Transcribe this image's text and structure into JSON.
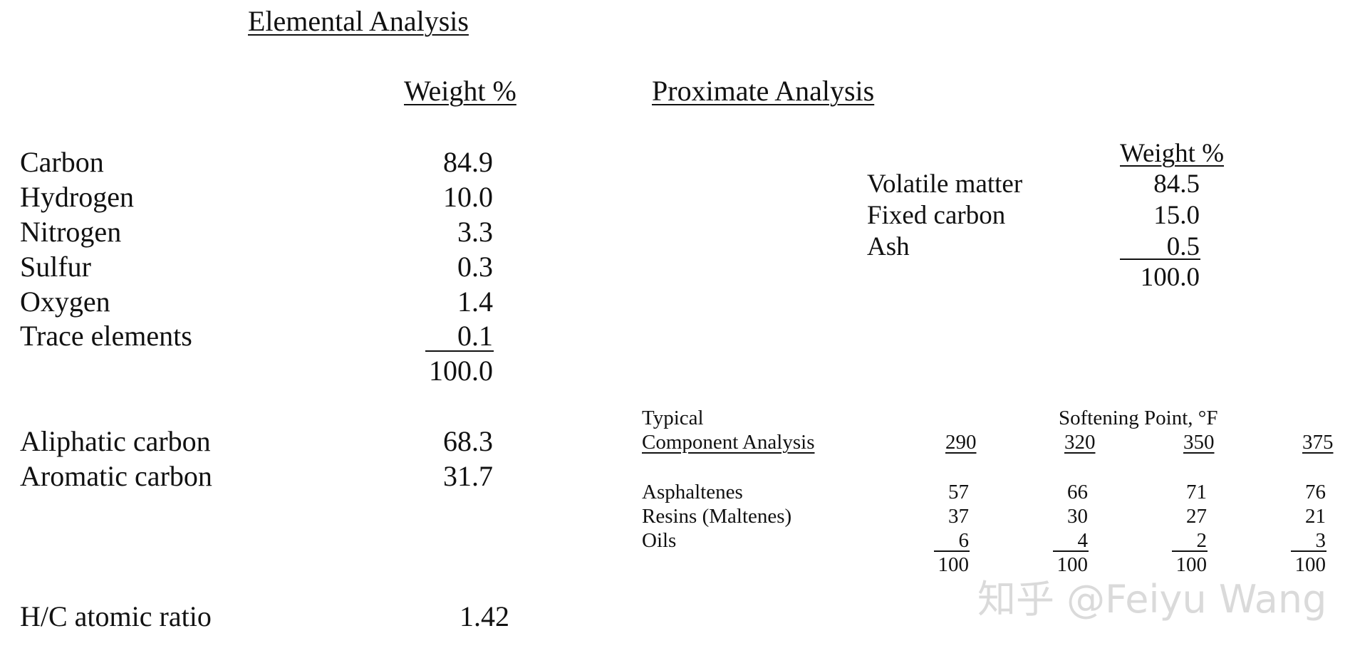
{
  "elemental": {
    "title": "Elemental Analysis",
    "weight_header": "Weight %",
    "rows": [
      {
        "label": "Carbon",
        "value": "84.9"
      },
      {
        "label": "Hydrogen",
        "value": "10.0"
      },
      {
        "label": "Nitrogen",
        "value": "3.3"
      },
      {
        "label": "Sulfur",
        "value": "0.3"
      },
      {
        "label": "Oxygen",
        "value": "1.4"
      },
      {
        "label": "Trace elements",
        "value": "0.1"
      }
    ],
    "total": "100.0",
    "carbon_types": [
      {
        "label": "Aliphatic carbon",
        "value": "68.3"
      },
      {
        "label": "Aromatic carbon",
        "value": "31.7"
      }
    ],
    "hc_ratio": {
      "label": "H/C atomic ratio",
      "value": "1.42"
    }
  },
  "proximate": {
    "title": "Proximate Analysis",
    "weight_header": "Weight %",
    "rows": [
      {
        "label": "Volatile matter",
        "value": "84.5"
      },
      {
        "label": "Fixed carbon",
        "value": "15.0"
      },
      {
        "label": "Ash",
        "value": "0.5"
      }
    ],
    "total": "100.0"
  },
  "component": {
    "title_line1": "Typical",
    "title_line2": "Component Analysis",
    "softening_header": "Softening Point, °F",
    "columns": [
      "290",
      "320",
      "350",
      "375"
    ],
    "rows": [
      {
        "label": "Asphaltenes",
        "values": [
          "57",
          "66",
          "71",
          "76"
        ]
      },
      {
        "label": "Resins (Maltenes)",
        "values": [
          "37",
          "30",
          "27",
          "21"
        ]
      },
      {
        "label": "Oils",
        "values": [
          "6",
          "4",
          "2",
          "3"
        ]
      }
    ],
    "totals": [
      "100",
      "100",
      "100",
      "100"
    ]
  },
  "watermark": "知乎 @Feiyu Wang"
}
